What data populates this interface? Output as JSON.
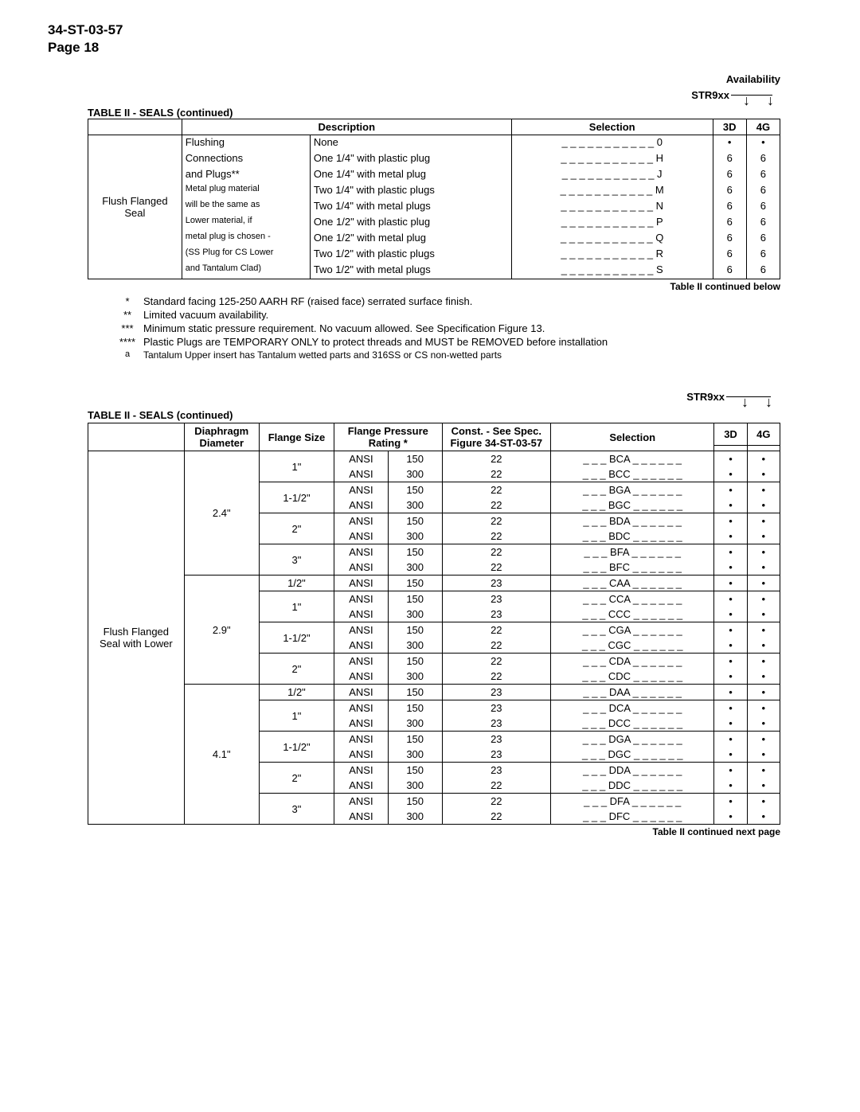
{
  "doc_id": "34-ST-03-57",
  "page_label": "Page 18",
  "t1": {
    "availability_label": "Availability",
    "model_label": "STR9xx",
    "title": "TABLE II - SEALS (continued)",
    "head_desc": "Description",
    "head_sel": "Selection",
    "head_3d": "3D",
    "head_4g": "4G",
    "category": "Flush Flanged Seal",
    "desc1": [
      "Flushing",
      "Connections",
      "and Plugs**",
      "Metal plug material",
      "will be the same as",
      "Lower material, if",
      "metal plug is chosen -",
      "(SS Plug for CS Lower",
      "and Tantalum Clad)"
    ],
    "desc1_small_rows": [
      3,
      4,
      5,
      6,
      7,
      8
    ],
    "desc2": [
      "None",
      "One 1/4\" with plastic plug",
      "One 1/4\" with metal plug",
      "Two 1/4\" with plastic plugs",
      "Two 1/4\" with metal plugs",
      "One 1/2\" with plastic plug",
      "One 1/2\" with metal plug",
      "Two 1/2\" with plastic plugs",
      "Two 1/2\" with metal plugs"
    ],
    "sel": [
      "_ _ _ _ _ _ _ _ _ _ _ 0",
      "_ _ _ _ _ _ _ _ _ _ _ H",
      "_ _ _ _ _ _ _ _ _ _ _ J",
      "_ _ _ _ _ _ _ _ _ _ _ M",
      "_ _ _ _ _ _ _ _ _ _ _ N",
      "_ _ _ _ _ _ _ _ _ _ _ P",
      "_ _ _ _ _ _ _ _ _ _ _ Q",
      "_ _ _ _ _ _ _ _ _ _ _ R",
      "_ _ _ _ _ _ _ _ _ _ _ S"
    ],
    "col3d": [
      "•",
      "6",
      "6",
      "6",
      "6",
      "6",
      "6",
      "6",
      "6"
    ],
    "col4g": [
      "•",
      "6",
      "6",
      "6",
      "6",
      "6",
      "6",
      "6",
      "6"
    ],
    "continued_below": "Table II continued below"
  },
  "footnotes": [
    {
      "mark": "*",
      "text": "Standard facing 125-250 AARH RF (raised face) serrated surface finish."
    },
    {
      "mark": "**",
      "text": "Limited vacuum availability."
    },
    {
      "mark": "***",
      "text": "Minimum static pressure requirement.  No vacuum allowed.   See Specification Figure 13."
    },
    {
      "mark": "****",
      "text": "Plastic Plugs are TEMPORARY ONLY to protect threads and MUST be REMOVED before installation"
    },
    {
      "mark": "a",
      "text": "Tantalum Upper insert has Tantalum wetted parts and 316SS or CS non-wetted parts",
      "small": true
    }
  ],
  "t2": {
    "model_label": "STR9xx",
    "title": "TABLE II - SEALS (continued)",
    "head_diam": "Diaphragm Diameter",
    "head_fs": "Flange Size",
    "head_fp": "Flange Pressure Rating *",
    "head_const": "Const. - See Spec. Figure 34-ST-03-57",
    "head_sel": "Selection",
    "head_3d": "3D",
    "head_4g": "4G",
    "category": "Flush Flanged Seal with Lower",
    "continued_next": "Table II continued next page",
    "rows": [
      {
        "diam": "2.4\"",
        "diam_span": 8,
        "fs": "1\"",
        "fs_span": 2,
        "fp1": "ANSI",
        "fp2": "150",
        "const": "22",
        "sel": "_ _ _ BCA _ _ _ _ _ _",
        "b": "•"
      },
      {
        "fp1": "ANSI",
        "fp2": "300",
        "const": "22",
        "sel": "_ _ _ BCC _ _ _ _ _ _",
        "b": "•"
      },
      {
        "fs": "1-1/2\"",
        "fs_span": 2,
        "fp1": "ANSI",
        "fp2": "150",
        "const": "22",
        "sel": "_ _ _ BGA _ _ _ _ _ _",
        "b": "•"
      },
      {
        "fp1": "ANSI",
        "fp2": "300",
        "const": "22",
        "sel": "_ _ _ BGC _ _ _ _ _ _",
        "b": "•"
      },
      {
        "fs": "2\"",
        "fs_span": 2,
        "fp1": "ANSI",
        "fp2": "150",
        "const": "22",
        "sel": "_ _ _ BDA _ _ _ _ _ _",
        "b": "•"
      },
      {
        "fp1": "ANSI",
        "fp2": "300",
        "const": "22",
        "sel": "_ _ _ BDC _ _ _ _ _ _",
        "b": "•"
      },
      {
        "fs": "3\"",
        "fs_span": 2,
        "fp1": "ANSI",
        "fp2": "150",
        "const": "22",
        "sel": "_ _ _ BFA _ _ _ _ _ _",
        "b": "•"
      },
      {
        "fp1": "ANSI",
        "fp2": "300",
        "const": "22",
        "sel": "_ _ _ BFC _ _ _ _ _ _",
        "b": "•"
      },
      {
        "diam": "2.9\"",
        "diam_span": 7,
        "fs": "1/2\"",
        "fs_span": 1,
        "fp1": "ANSI",
        "fp2": "150",
        "const": "23",
        "sel": "_ _ _ CAA _ _ _ _ _ _",
        "b": "•"
      },
      {
        "fs": "1\"",
        "fs_span": 2,
        "fp1": "ANSI",
        "fp2": "150",
        "const": "23",
        "sel": "_ _ _ CCA _ _ _ _ _ _",
        "b": "•"
      },
      {
        "fp1": "ANSI",
        "fp2": "300",
        "const": "23",
        "sel": "_ _ _ CCC _ _ _ _ _ _",
        "b": "•"
      },
      {
        "fs": "1-1/2\"",
        "fs_span": 2,
        "fp1": "ANSI",
        "fp2": "150",
        "const": "22",
        "sel": "_ _ _ CGA _ _ _ _ _ _",
        "b": "•"
      },
      {
        "fp1": "ANSI",
        "fp2": "300",
        "const": "22",
        "sel": "_ _ _ CGC _ _ _ _ _ _",
        "b": "•"
      },
      {
        "fs": "2\"",
        "fs_span": 2,
        "fp1": "ANSI",
        "fp2": "150",
        "const": "22",
        "sel": "_ _ _ CDA _ _ _ _ _ _",
        "b": "•"
      },
      {
        "fp1": "ANSI",
        "fp2": "300",
        "const": "22",
        "sel": "_ _ _ CDC _ _ _ _ _ _",
        "b": "•"
      },
      {
        "diam": "4.1\"",
        "diam_span": 9,
        "fs": "1/2\"",
        "fs_span": 1,
        "fp1": "ANSI",
        "fp2": "150",
        "const": "23",
        "sel": "_ _ _ DAA _ _ _ _ _ _",
        "b": "•"
      },
      {
        "fs": "1\"",
        "fs_span": 2,
        "fp1": "ANSI",
        "fp2": "150",
        "const": "23",
        "sel": "_ _ _ DCA _ _ _ _ _ _",
        "b": "•"
      },
      {
        "fp1": "ANSI",
        "fp2": "300",
        "const": "23",
        "sel": "_ _ _ DCC _ _ _ _ _ _",
        "b": "•"
      },
      {
        "fs": "1-1/2\"",
        "fs_span": 2,
        "fp1": "ANSI",
        "fp2": "150",
        "const": "23",
        "sel": "_ _ _ DGA _ _ _ _ _ _",
        "b": "•"
      },
      {
        "fp1": "ANSI",
        "fp2": "300",
        "const": "23",
        "sel": "_ _ _ DGC _ _ _ _ _ _",
        "b": "•"
      },
      {
        "fs": "2\"",
        "fs_span": 2,
        "fp1": "ANSI",
        "fp2": "150",
        "const": "23",
        "sel": "_ _ _ DDA _ _ _ _ _ _",
        "b": "•"
      },
      {
        "fp1": "ANSI",
        "fp2": "300",
        "const": "22",
        "sel": "_ _ _ DDC _ _ _ _ _ _",
        "b": "•"
      },
      {
        "fs": "3\"",
        "fs_span": 2,
        "fp1": "ANSI",
        "fp2": "150",
        "const": "22",
        "sel": "_ _ _ DFA _ _ _ _ _ _",
        "b": "•"
      },
      {
        "fp1": "ANSI",
        "fp2": "300",
        "const": "22",
        "sel": "_ _ _ DFC _ _ _ _ _ _",
        "b": "•"
      }
    ]
  }
}
